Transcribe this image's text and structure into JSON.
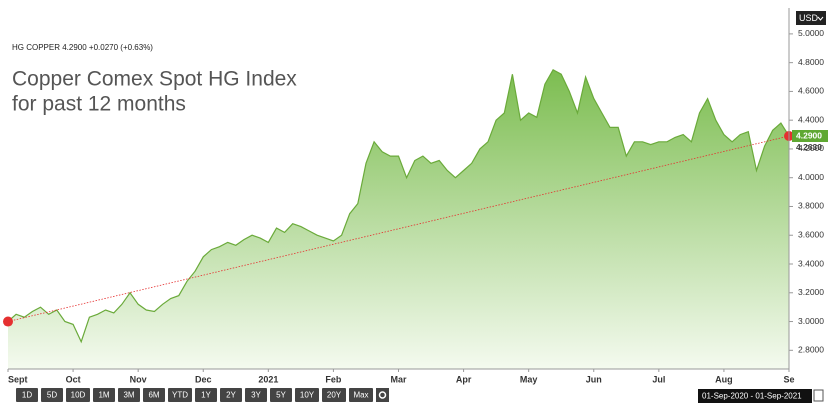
{
  "ticker": "HG COPPER 4.2900 +0.0270 (+0.63%)",
  "currency": "USD",
  "buttons": [
    "1D",
    "5D",
    "10D",
    "1M",
    "3M",
    "6M",
    "YTD",
    "1Y",
    "2Y",
    "3Y",
    "5Y",
    "10Y",
    "20Y",
    "Max"
  ],
  "date_range": "01-Sep-2020 - 01-Sep-2021",
  "chart_data": {
    "type": "area",
    "title": [
      "Copper Comex Spot HG Index",
      "for past 12 months"
    ],
    "categories": [
      "Sept",
      null,
      null,
      null,
      null,
      null,
      null,
      null,
      "Oct",
      null,
      null,
      null,
      null,
      null,
      null,
      null,
      "Nov",
      null,
      null,
      null,
      null,
      null,
      null,
      null,
      "Dec",
      null,
      null,
      null,
      null,
      null,
      null,
      null,
      "2021",
      null,
      null,
      null,
      null,
      null,
      null,
      null,
      "Feb",
      null,
      null,
      null,
      null,
      null,
      null,
      null,
      "Mar",
      null,
      null,
      null,
      null,
      null,
      null,
      null,
      "Apr",
      null,
      null,
      null,
      null,
      null,
      null,
      null,
      "May",
      null,
      null,
      null,
      null,
      null,
      null,
      null,
      "Jun",
      null,
      null,
      null,
      null,
      null,
      null,
      null,
      "Jul",
      null,
      null,
      null,
      null,
      null,
      null,
      null,
      "Aug",
      null,
      null,
      null,
      null,
      null,
      null,
      null,
      "Se"
    ],
    "values": [
      3.0,
      3.05,
      3.03,
      3.07,
      3.1,
      3.05,
      3.08,
      3.0,
      2.98,
      2.86,
      3.03,
      3.05,
      3.08,
      3.06,
      3.12,
      3.2,
      3.12,
      3.08,
      3.07,
      3.12,
      3.16,
      3.18,
      3.28,
      3.35,
      3.45,
      3.5,
      3.52,
      3.55,
      3.53,
      3.57,
      3.6,
      3.58,
      3.55,
      3.65,
      3.62,
      3.68,
      3.66,
      3.63,
      3.6,
      3.58,
      3.56,
      3.6,
      3.75,
      3.82,
      4.1,
      4.25,
      4.18,
      4.15,
      4.15,
      4.0,
      4.12,
      4.15,
      4.1,
      4.12,
      4.05,
      4.0,
      4.05,
      4.1,
      4.2,
      4.25,
      4.4,
      4.45,
      4.72,
      4.4,
      4.45,
      4.42,
      4.65,
      4.75,
      4.72,
      4.6,
      4.45,
      4.7,
      4.55,
      4.45,
      4.35,
      4.35,
      4.15,
      4.25,
      4.25,
      4.23,
      4.25,
      4.25,
      4.28,
      4.3,
      4.25,
      4.45,
      4.55,
      4.4,
      4.3,
      4.25,
      4.3,
      4.32,
      4.05,
      4.22,
      4.33,
      4.38,
      4.29
    ],
    "color": "#6aaa3a",
    "trend_color": "#e53030",
    "ylim": [
      2.67,
      5.18
    ],
    "yticks": [
      {
        "value": 2.8,
        "label": "2.8000"
      },
      {
        "value": 3.0,
        "label": "3.0000"
      },
      {
        "value": 3.2,
        "label": "3.2000"
      },
      {
        "value": 3.4,
        "label": "3.4000"
      },
      {
        "value": 3.6,
        "label": "3.6000"
      },
      {
        "value": 3.8,
        "label": "3.8000"
      },
      {
        "value": 4.0,
        "label": "4.0000"
      },
      {
        "value": 4.2,
        "label": "4.2000"
      },
      {
        "value": 4.4,
        "label": "4.4000"
      },
      {
        "value": 4.6,
        "label": "4.6000"
      },
      {
        "value": 4.8,
        "label": "4.8000"
      },
      {
        "value": 5.0,
        "label": "5.0000"
      }
    ],
    "price_markers": [
      {
        "value": 4.29,
        "label": "4.2900"
      },
      {
        "value": 4.263,
        "label": "4.2630"
      }
    ]
  }
}
